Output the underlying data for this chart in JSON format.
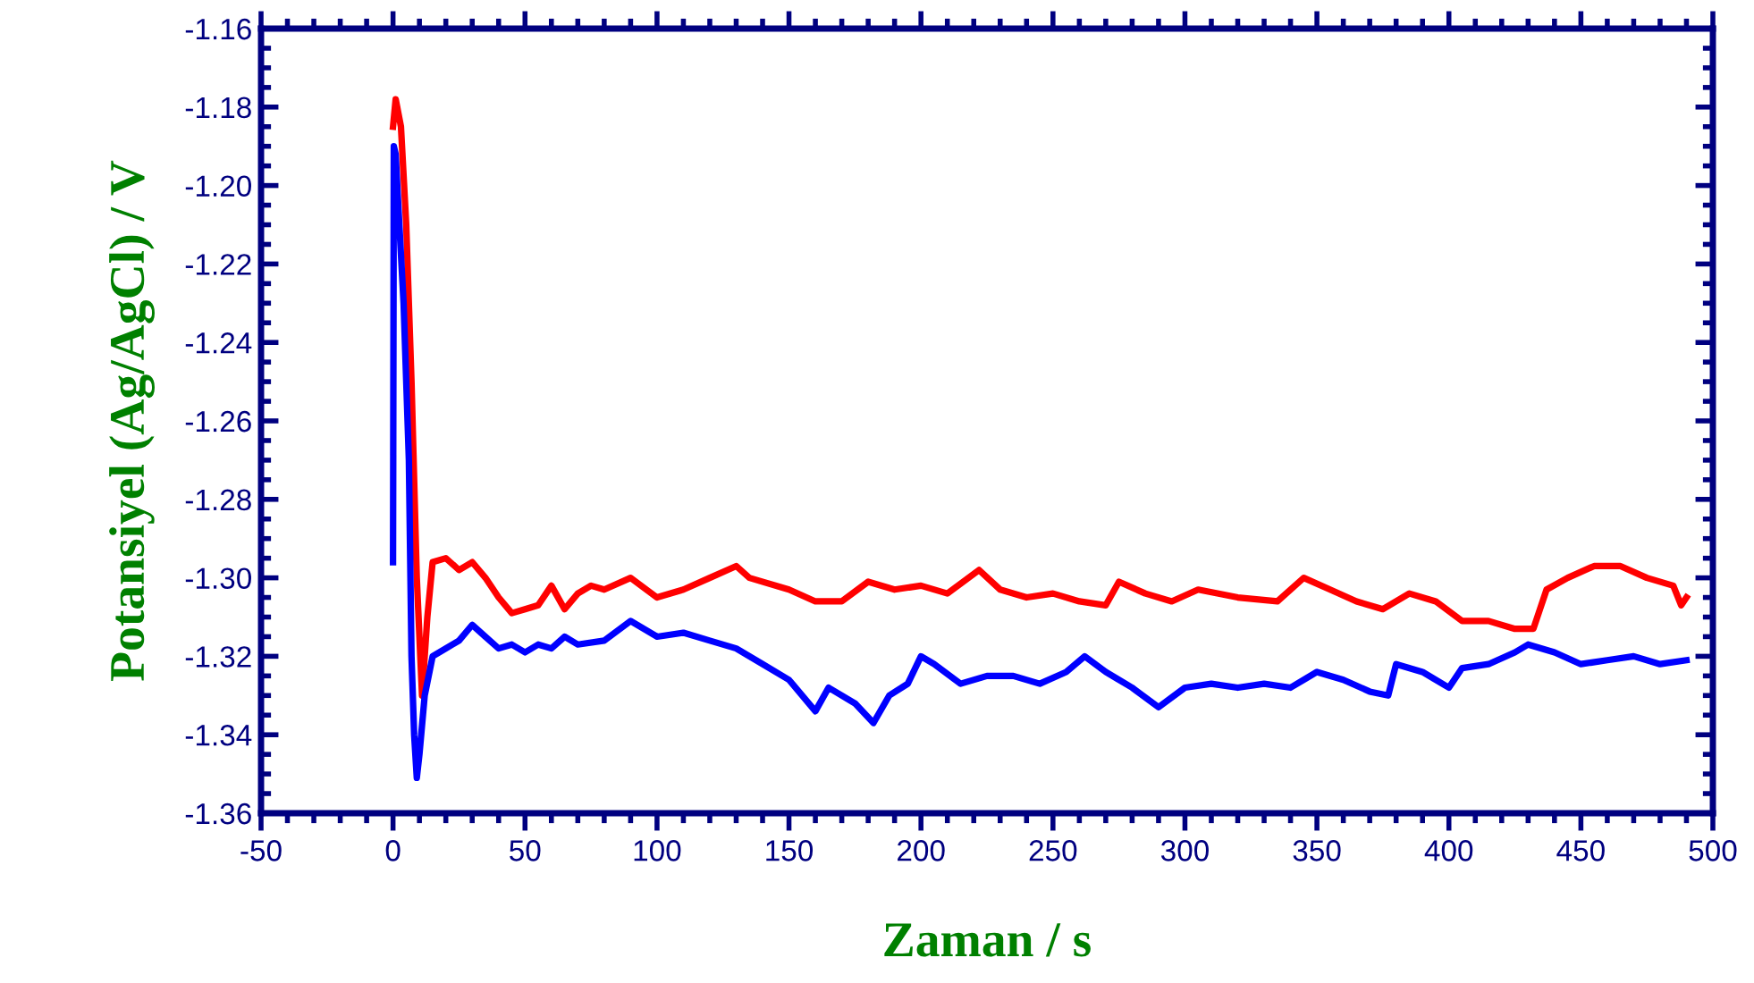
{
  "chart_data": {
    "type": "line",
    "xlabel": "Zaman / s",
    "ylabel": "Potansiyel (Ag/AgCl) / V",
    "xlim": [
      -50,
      500
    ],
    "xticks": [
      -50,
      0,
      50,
      100,
      150,
      200,
      250,
      300,
      350,
      400,
      450,
      500
    ],
    "ylim": [
      -1.36,
      -1.16
    ],
    "yticks": [
      -1.36,
      -1.34,
      -1.32,
      {
        "value": -1.3,
        "label": "-1.30"
      },
      -1.28,
      -1.26,
      -1.24,
      -1.22,
      {
        "value": -1.2,
        "label": "-1.20"
      },
      -1.18,
      -1.16
    ],
    "grid": false,
    "legend": false,
    "marker": "none",
    "line_style": "solid",
    "series": [
      {
        "color": "#ff0000",
        "x": [
          0,
          1,
          3,
          5,
          7,
          9,
          11,
          13,
          15,
          20,
          25,
          30,
          35,
          40,
          45,
          50,
          55,
          60,
          65,
          70,
          75,
          80,
          90,
          100,
          110,
          120,
          130,
          135,
          150,
          160,
          170,
          180,
          190,
          200,
          210,
          222,
          230,
          240,
          250,
          260,
          270,
          275,
          285,
          295,
          305,
          320,
          335,
          345,
          355,
          365,
          375,
          385,
          395,
          405,
          415,
          425,
          432,
          437,
          445,
          455,
          465,
          475,
          485,
          488,
          490
        ],
        "values": [
          -1.185,
          -1.178,
          -1.185,
          -1.21,
          -1.25,
          -1.3,
          -1.33,
          -1.31,
          -1.296,
          -1.295,
          -1.298,
          -1.296,
          -1.3,
          -1.305,
          -1.309,
          -1.308,
          -1.307,
          -1.302,
          -1.308,
          -1.304,
          -1.302,
          -1.303,
          -1.3,
          -1.305,
          -1.303,
          -1.3,
          -1.297,
          -1.3,
          -1.303,
          -1.306,
          -1.306,
          -1.301,
          -1.303,
          -1.302,
          -1.304,
          -1.298,
          -1.303,
          -1.305,
          -1.304,
          -1.306,
          -1.307,
          -1.301,
          -1.304,
          -1.306,
          -1.303,
          -1.305,
          -1.306,
          -1.3,
          -1.303,
          -1.306,
          -1.308,
          -1.304,
          -1.306,
          -1.311,
          -1.311,
          -1.313,
          -1.313,
          -1.303,
          -1.3,
          -1.297,
          -1.297,
          -1.3,
          -1.302,
          -1.307,
          -1.305
        ]
      },
      {
        "color": "#0000ff",
        "x": [
          0,
          0.3,
          1,
          2,
          4,
          6,
          7,
          8,
          9,
          10,
          12,
          15,
          20,
          25,
          30,
          35,
          40,
          45,
          50,
          55,
          60,
          65,
          70,
          80,
          90,
          95,
          100,
          110,
          120,
          130,
          140,
          150,
          160,
          165,
          175,
          182,
          188,
          195,
          200,
          205,
          215,
          225,
          235,
          245,
          255,
          262,
          270,
          280,
          290,
          300,
          310,
          320,
          330,
          340,
          350,
          360,
          370,
          377,
          380,
          390,
          400,
          405,
          415,
          425,
          430,
          440,
          450,
          460,
          470,
          480,
          490
        ],
        "values": [
          -1.296,
          -1.19,
          -1.192,
          -1.205,
          -1.23,
          -1.27,
          -1.32,
          -1.34,
          -1.351,
          -1.345,
          -1.33,
          -1.32,
          -1.318,
          -1.316,
          -1.312,
          -1.315,
          -1.318,
          -1.317,
          -1.319,
          -1.317,
          -1.318,
          -1.315,
          -1.317,
          -1.316,
          -1.311,
          -1.313,
          -1.315,
          -1.314,
          -1.316,
          -1.318,
          -1.322,
          -1.326,
          -1.334,
          -1.328,
          -1.332,
          -1.337,
          -1.33,
          -1.327,
          -1.32,
          -1.322,
          -1.327,
          -1.325,
          -1.325,
          -1.327,
          -1.324,
          -1.32,
          -1.324,
          -1.328,
          -1.333,
          -1.328,
          -1.327,
          -1.328,
          -1.327,
          -1.328,
          -1.324,
          -1.326,
          -1.329,
          -1.33,
          -1.322,
          -1.324,
          -1.328,
          -1.323,
          -1.322,
          -1.319,
          -1.317,
          -1.319,
          -1.322,
          -1.321,
          -1.32,
          -1.322,
          -1.321
        ]
      }
    ]
  }
}
